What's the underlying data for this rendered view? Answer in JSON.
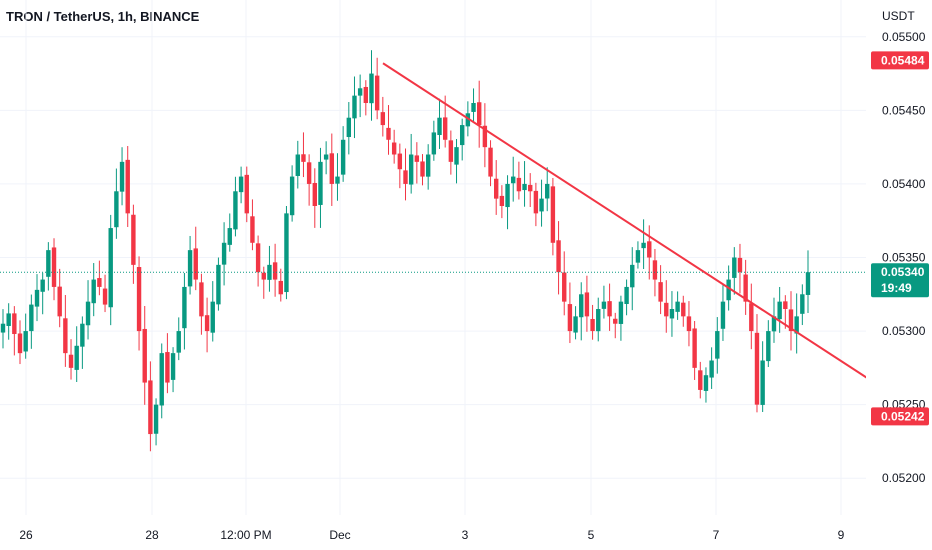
{
  "header": {
    "title": "TRON / TetherUS, 1h, BINANCE"
  },
  "price_axis": {
    "currency_label": "USDT"
  },
  "colors": {
    "up": "#089981",
    "down": "#f23645",
    "trendline": "#f23645",
    "current_price_line": "#089981",
    "grid": "#f0f3fa",
    "axis_text": "#131722"
  },
  "chart_data": {
    "type": "candlestick",
    "title": "TRON / TetherUS, 1h, BINANCE",
    "ylabel": "USDT",
    "ylim": [
      0.05175,
      0.05525
    ],
    "y_ticks": [
      "0.05200",
      "0.05250",
      "0.05300",
      "0.05350",
      "0.05400",
      "0.05450",
      "0.05500"
    ],
    "x_tick_labels": [
      "26",
      "28",
      "12:00 PM",
      "Dec",
      "3",
      "5",
      "7",
      "9"
    ],
    "price_tags": [
      {
        "label": "0.05484",
        "value": 0.05484,
        "type": "high"
      },
      {
        "label": "0.05340",
        "value": 0.0534,
        "type": "last",
        "countdown": "19:49"
      },
      {
        "label": "0.05242",
        "value": 0.05242,
        "type": "low"
      }
    ],
    "trendline": {
      "from": {
        "x": "Dec 1",
        "y": 0.05482
      },
      "to": {
        "x": "Dec 9",
        "y": 0.05266
      }
    },
    "series": [
      {
        "type": "candles",
        "closes": [
          0.05305,
          0.05312,
          0.05298,
          0.05285,
          0.053,
          0.05318,
          0.05328,
          0.05335,
          0.05355,
          0.0533,
          0.0531,
          0.05285,
          0.05275,
          0.0529,
          0.05305,
          0.0532,
          0.05335,
          0.0533,
          0.05318,
          0.0537,
          0.05395,
          0.05415,
          0.0538,
          0.05345,
          0.053,
          0.05265,
          0.0523,
          0.0525,
          0.05285,
          0.05265,
          0.05285,
          0.053,
          0.0533,
          0.05355,
          0.05335,
          0.0531,
          0.053,
          0.0532,
          0.05345,
          0.0536,
          0.0537,
          0.05395,
          0.05405,
          0.0538,
          0.0536,
          0.0534,
          0.05335,
          0.05345,
          0.05335,
          0.05325,
          0.0538,
          0.05405,
          0.0542,
          0.05415,
          0.054,
          0.05385,
          0.05415,
          0.0542,
          0.054,
          0.05405,
          0.0543,
          0.05445,
          0.0546,
          0.05465,
          0.05455,
          0.05475,
          0.0545,
          0.0544,
          0.0543,
          0.0542,
          0.0541,
          0.054,
          0.0542,
          0.05415,
          0.05405,
          0.0542,
          0.05435,
          0.05445,
          0.0543,
          0.05415,
          0.05425,
          0.0544,
          0.05448,
          0.05455,
          0.0544,
          0.05425,
          0.05405,
          0.0539,
          0.05385,
          0.054,
          0.05405,
          0.05395,
          0.054,
          0.05395,
          0.0538,
          0.0539,
          0.054,
          0.0536,
          0.0534,
          0.0532,
          0.053,
          0.0531,
          0.05325,
          0.0531,
          0.053,
          0.05315,
          0.0532,
          0.0531,
          0.05305,
          0.0532,
          0.0533,
          0.05345,
          0.05355,
          0.0536,
          0.0535,
          0.05335,
          0.0532,
          0.0531,
          0.05315,
          0.0532,
          0.0531,
          0.053,
          0.05275,
          0.0526,
          0.0527,
          0.0528,
          0.053,
          0.0532,
          0.05335,
          0.0535,
          0.0534,
          0.0532,
          0.053,
          0.0525,
          0.0528,
          0.053,
          0.0531,
          0.0532,
          0.05315,
          0.053,
          0.0531,
          0.05325,
          0.0534
        ]
      }
    ]
  }
}
